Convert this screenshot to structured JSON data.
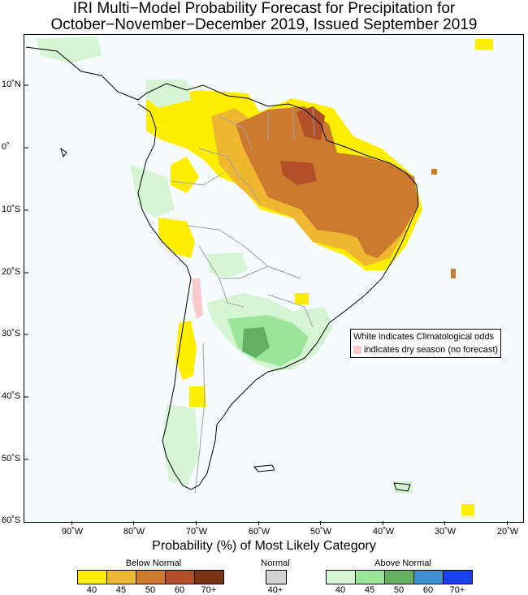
{
  "title": {
    "line1": "IRI Multi−Model Probability Forecast for Precipitation for",
    "line2": "October−November−December 2019, Issued September 2019"
  },
  "map": {
    "lat_labels": [
      "10˚N",
      "0˚",
      "10˚S",
      "20˚S",
      "30˚S",
      "40˚S",
      "50˚S",
      "60˚S"
    ],
    "lon_labels": [
      "90˚W",
      "80˚W",
      "70˚W",
      "60˚W",
      "50˚W",
      "40˚W",
      "30˚W",
      "20˚W"
    ],
    "colors": {
      "background": "#f5fbfe",
      "coast": "#000000",
      "border": "#a0a0a0",
      "yellow": "#ffee00",
      "light_orange": "#f0b830",
      "orange": "#cd7a2e",
      "dark_orange": "#b04f28",
      "light_green": "#d5f5d3",
      "green": "#9be59a",
      "dark_green": "#63b063",
      "pink": "#f9c9cc"
    }
  },
  "annotation": {
    "line1": "White indicates Climatological odds",
    "line2": "indicates dry season (no forecast)"
  },
  "legend": {
    "title": "Probability (%) of Most Likely Category",
    "below": {
      "label": "Below Normal",
      "ticks": [
        "40",
        "45",
        "50",
        "60",
        "70+"
      ],
      "colors": [
        "#ffee00",
        "#f0b830",
        "#cd7a2e",
        "#b04f28",
        "#7a3411"
      ]
    },
    "normal": {
      "label": "Normal",
      "ticks": [
        "40+"
      ],
      "colors": [
        "#d2d2d2"
      ]
    },
    "above": {
      "label": "Above Normal",
      "ticks": [
        "40",
        "45",
        "50",
        "60",
        "70+"
      ],
      "colors": [
        "#d5f5d3",
        "#9be59a",
        "#63b063",
        "#3e8fd0",
        "#1a3ff0"
      ]
    }
  }
}
